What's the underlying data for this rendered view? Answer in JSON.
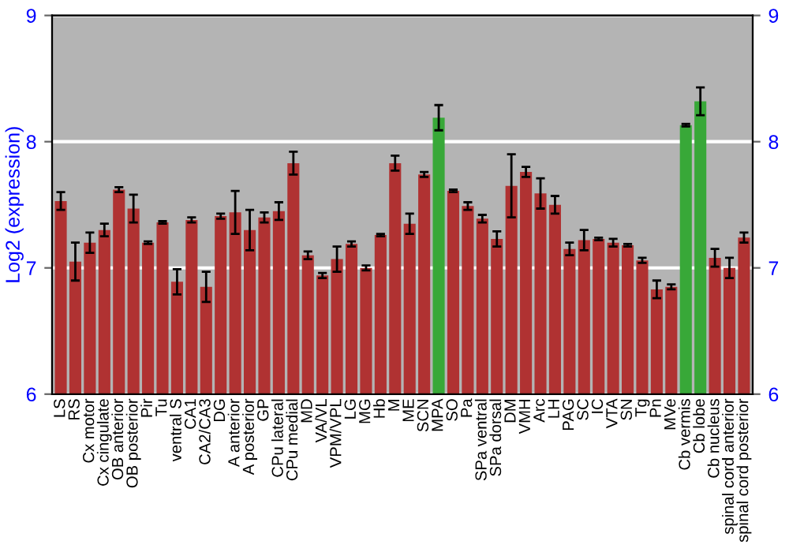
{
  "chart_data": {
    "type": "bar",
    "ylabel": "Log2 (expression)",
    "categories": [
      "LS",
      "RS",
      "Cx motor",
      "Cx cingulate",
      "OB anterior",
      "OB posterior",
      "Pir",
      "Tu",
      "ventral S",
      "CA1",
      "CA2/CA3",
      "DG",
      "A anterior",
      "A posterior",
      "GP",
      "CPu lateral",
      "CPu medial",
      "MD",
      "VA/VL",
      "VPM/VPL",
      "LG",
      "MG",
      "Hb",
      "M",
      "ME",
      "SCN",
      "MPA",
      "SO",
      "Pa",
      "SPa ventral",
      "SPa dorsal",
      "DM",
      "VMH",
      "Arc",
      "LH",
      "PAG",
      "SC",
      "IC",
      "VTA",
      "SN",
      "Tg",
      "Pn",
      "MVe",
      "Cb vermis",
      "Cb lobe",
      "Cb nucleus",
      "spinal cord anterior",
      "spinal cord posterior"
    ],
    "values": [
      7.53,
      7.05,
      7.2,
      7.3,
      7.62,
      7.47,
      7.2,
      7.36,
      6.89,
      7.38,
      6.85,
      7.41,
      7.44,
      7.3,
      7.4,
      7.45,
      7.83,
      7.1,
      6.94,
      7.07,
      7.19,
      7.0,
      7.26,
      7.83,
      7.35,
      7.74,
      8.19,
      7.61,
      7.49,
      7.39,
      7.23,
      7.65,
      7.76,
      7.59,
      7.5,
      7.15,
      7.22,
      7.23,
      7.2,
      7.18,
      7.06,
      6.83,
      6.85,
      8.13,
      8.32,
      7.08,
      7.0,
      7.24
    ],
    "errors": [
      0.07,
      0.15,
      0.08,
      0.05,
      0.02,
      0.11,
      0.01,
      0.01,
      0.1,
      0.02,
      0.12,
      0.02,
      0.17,
      0.16,
      0.04,
      0.07,
      0.09,
      0.03,
      0.02,
      0.1,
      0.02,
      0.02,
      0.01,
      0.06,
      0.08,
      0.02,
      0.1,
      0.01,
      0.03,
      0.03,
      0.06,
      0.25,
      0.04,
      0.12,
      0.07,
      0.05,
      0.08,
      0.01,
      0.03,
      0.01,
      0.02,
      0.07,
      0.02,
      0.01,
      0.11,
      0.07,
      0.08,
      0.04
    ],
    "colors": [
      "#b03232",
      "#b03232",
      "#b03232",
      "#b03232",
      "#b03232",
      "#b03232",
      "#b03232",
      "#b03232",
      "#b03232",
      "#b03232",
      "#b03232",
      "#b03232",
      "#b03232",
      "#b03232",
      "#b03232",
      "#b03232",
      "#b03232",
      "#b03232",
      "#b03232",
      "#b03232",
      "#b03232",
      "#b03232",
      "#b03232",
      "#b03232",
      "#b03232",
      "#b03232",
      "#38a838",
      "#b03232",
      "#b03232",
      "#b03232",
      "#b03232",
      "#b03232",
      "#b03232",
      "#b03232",
      "#b03232",
      "#b03232",
      "#b03232",
      "#b03232",
      "#b03232",
      "#b03232",
      "#b03232",
      "#b03232",
      "#b03232",
      "#38a838",
      "#38a838",
      "#b03232",
      "#b03232",
      "#b03232"
    ],
    "ylim": [
      6,
      9
    ],
    "yticks": [
      6,
      7,
      8,
      9
    ],
    "y2lim": [
      6,
      9
    ],
    "y2ticks": [
      6,
      7,
      8,
      9
    ],
    "grid": "y"
  }
}
